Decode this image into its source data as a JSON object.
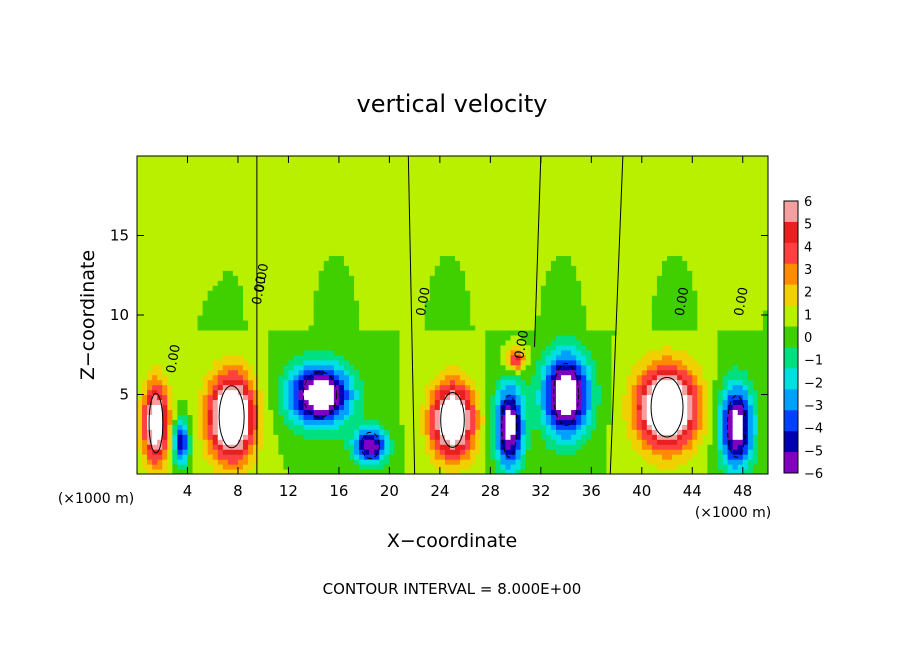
{
  "chart_data": {
    "type": "heatmap",
    "title": "vertical velocity",
    "xlabel": "X−coordinate",
    "ylabel": "Z−coordinate",
    "x_unit_left": "(×1000 m)",
    "x_unit_right": "(×1000 m)",
    "footer": "CONTOUR INTERVAL = 8.000E+00",
    "xlim": [
      0,
      50
    ],
    "ylim": [
      0,
      20
    ],
    "x_ticks": [
      {
        "value": 4,
        "label": "4"
      },
      {
        "value": 8,
        "label": "8"
      },
      {
        "value": 12,
        "label": "12"
      },
      {
        "value": 16,
        "label": "16"
      },
      {
        "value": 20,
        "label": "20"
      },
      {
        "value": 24,
        "label": "24"
      },
      {
        "value": 28,
        "label": "28"
      },
      {
        "value": 32,
        "label": "32"
      },
      {
        "value": 36,
        "label": "36"
      },
      {
        "value": 40,
        "label": "40"
      },
      {
        "value": 44,
        "label": "44"
      },
      {
        "value": 48,
        "label": "48"
      }
    ],
    "y_ticks": [
      {
        "value": 5,
        "label": "5"
      },
      {
        "value": 10,
        "label": "10"
      },
      {
        "value": 15,
        "label": "15"
      }
    ],
    "colorbar": {
      "levels": [
        "6",
        "5",
        "4",
        "3",
        "2",
        "1",
        "0",
        "−1",
        "−2",
        "−3",
        "−4",
        "−5",
        "−6"
      ],
      "colors": [
        "#f4a0a0",
        "#e82020",
        "#ff4040",
        "#ff8c00",
        "#f0d000",
        "#b8f000",
        "#40d000",
        "#00e080",
        "#00e0e0",
        "#00a0ff",
        "#0040ff",
        "#0000b0",
        "#8000c0"
      ]
    },
    "field_features": [
      {
        "x": 1.5,
        "z": 3.2,
        "w": 8,
        "sx": 1.0,
        "sz": 2.5
      },
      {
        "x": 3.5,
        "z": 2.0,
        "w": -6,
        "sx": 0.6,
        "sz": 1.4
      },
      {
        "x": 7.5,
        "z": 3.6,
        "w": 10,
        "sx": 1.8,
        "sz": 2.6
      },
      {
        "x": 14.5,
        "z": 5.0,
        "w": -9,
        "sx": 2.4,
        "sz": 1.9
      },
      {
        "x": 18.5,
        "z": 1.8,
        "w": -7,
        "sx": 1.3,
        "sz": 1.1
      },
      {
        "x": 25.0,
        "z": 3.4,
        "w": 9,
        "sx": 1.7,
        "sz": 2.3
      },
      {
        "x": 29.5,
        "z": 3.0,
        "w": -8,
        "sx": 1.1,
        "sz": 2.6
      },
      {
        "x": 30.0,
        "z": 7.2,
        "w": 5,
        "sx": 0.7,
        "sz": 0.7
      },
      {
        "x": 34.0,
        "z": 5.0,
        "w": -9,
        "sx": 1.8,
        "sz": 2.6
      },
      {
        "x": 42.0,
        "z": 4.2,
        "w": 10,
        "sx": 2.3,
        "sz": 2.5
      },
      {
        "x": 47.5,
        "z": 3.0,
        "w": -8,
        "sx": 1.3,
        "sz": 2.6
      }
    ],
    "contour_labels": [
      "0.00",
      "0.00",
      "0.00",
      "0.00",
      "0.00",
      "0.00",
      "0.00"
    ]
  }
}
